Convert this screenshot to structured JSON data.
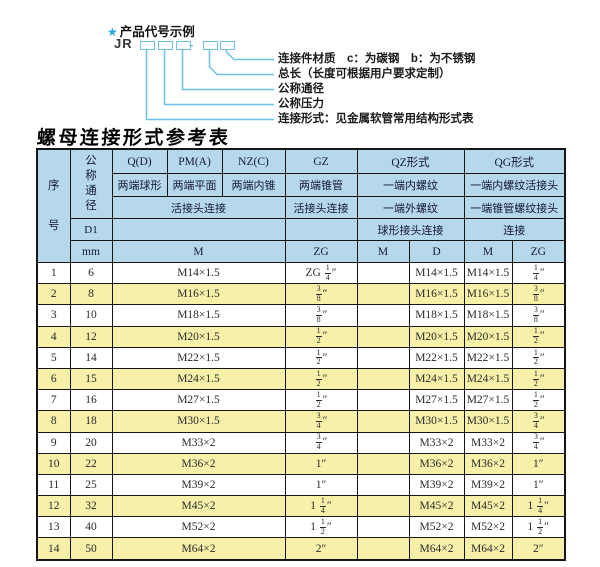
{
  "diagram": {
    "star": "★",
    "title": "产品代号示例",
    "prefix": "JR",
    "dash": "-",
    "labels": [
      "连接件材质　c：为碳钢　b：为不锈钢",
      "总长（长度可根据用户要求定制）",
      "公称通径",
      "公称压力",
      "连接形式：见金属软管常用结构形式表"
    ]
  },
  "table": {
    "title": "螺母连接形式参考表",
    "header": {
      "seq": "序号",
      "dn": "公称通径",
      "d1": "D1",
      "mm": "mm",
      "q1": "Q(D)",
      "q2": "两端球形",
      "pm1": "PM(A)",
      "pm2": "两端平面",
      "nz1": "NZ(C)",
      "nz2": "两端内锥",
      "union3": "活接头连接",
      "m_wide": "M",
      "gz1": "GZ",
      "gz2": "两端锥管",
      "gz3": "活接头连接",
      "gz_zg": "ZG",
      "qz1": "QZ形式",
      "qz2": "一端内螺纹",
      "qz3": "一端外螺纹",
      "qz4": "球形接头连接",
      "qz_m": "M",
      "qz_d": "D",
      "qg1": "QG形式",
      "qg2": "一端内螺纹活接头",
      "qg3": "一端锥管螺纹接头",
      "qg4": "连接",
      "qg_m": "M",
      "qg_zg": "ZG"
    },
    "rows": [
      {
        "no": "1",
        "dn": "6",
        "m": "M14×1.5",
        "gz": "ZG 1/4″",
        "qzm": "",
        "qzd": "M14×1.5",
        "qgm": "M14×1.5",
        "qgzg": "1/4″"
      },
      {
        "no": "2",
        "dn": "8",
        "m": "M16×1.5",
        "gz": "3/8″",
        "qzm": "",
        "qzd": "M16×1.5",
        "qgm": "M16×1.5",
        "qgzg": "3/8″"
      },
      {
        "no": "3",
        "dn": "10",
        "m": "M18×1.5",
        "gz": "3/8″",
        "qzm": "",
        "qzd": "M18×1.5",
        "qgm": "M18×1.5",
        "qgzg": "3/8″"
      },
      {
        "no": "4",
        "dn": "12",
        "m": "M20×1.5",
        "gz": "1/2″",
        "qzm": "",
        "qzd": "M20×1.5",
        "qgm": "M20×1.5",
        "qgzg": "1/2″"
      },
      {
        "no": "5",
        "dn": "14",
        "m": "M22×1.5",
        "gz": "1/2″",
        "qzm": "",
        "qzd": "M22×1.5",
        "qgm": "M22×1.5",
        "qgzg": "1/2″"
      },
      {
        "no": "6",
        "dn": "15",
        "m": "M24×1.5",
        "gz": "1/2″",
        "qzm": "",
        "qzd": "M24×1.5",
        "qgm": "M24×1.5",
        "qgzg": "1/2″"
      },
      {
        "no": "7",
        "dn": "16",
        "m": "M27×1.5",
        "gz": "1/2″",
        "qzm": "",
        "qzd": "M27×1.5",
        "qgm": "M27×1.5",
        "qgzg": "1/2″"
      },
      {
        "no": "8",
        "dn": "18",
        "m": "M30×1.5",
        "gz": "3/4″",
        "qzm": "",
        "qzd": "M30×1.5",
        "qgm": "M30×1.5",
        "qgzg": "3/4″"
      },
      {
        "no": "9",
        "dn": "20",
        "m": "M33×2",
        "gz": "3/4″",
        "qzm": "",
        "qzd": "M33×2",
        "qgm": "M33×2",
        "qgzg": "3/4″"
      },
      {
        "no": "10",
        "dn": "22",
        "m": "M36×2",
        "gz": "1″",
        "qzm": "",
        "qzd": "M36×2",
        "qgm": "M36×2",
        "qgzg": "1″"
      },
      {
        "no": "11",
        "dn": "25",
        "m": "M39×2",
        "gz": "1″",
        "qzm": "",
        "qzd": "M39×2",
        "qgm": "M39×2",
        "qgzg": "1″"
      },
      {
        "no": "12",
        "dn": "32",
        "m": "M45×2",
        "gz": "1 1/4″",
        "qzm": "",
        "qzd": "M45×2",
        "qgm": "M45×2",
        "qgzg": "1 1/4″"
      },
      {
        "no": "13",
        "dn": "40",
        "m": "M52×2",
        "gz": "1 1/2″",
        "qzm": "",
        "qzd": "M52×2",
        "qgm": "M52×2",
        "qgzg": "1 1/2″"
      },
      {
        "no": "14",
        "dn": "50",
        "m": "M64×2",
        "gz": "2″",
        "qzm": "",
        "qzd": "M64×2",
        "qgm": "M64×2",
        "qgzg": "2″"
      }
    ]
  },
  "colors": {
    "header_bg": "#b5d9ea",
    "row_alt_bg": "#f6f0a9",
    "diagram_line": "#6ec2e0",
    "star": "#2aa7d6",
    "grid": "#151515"
  }
}
